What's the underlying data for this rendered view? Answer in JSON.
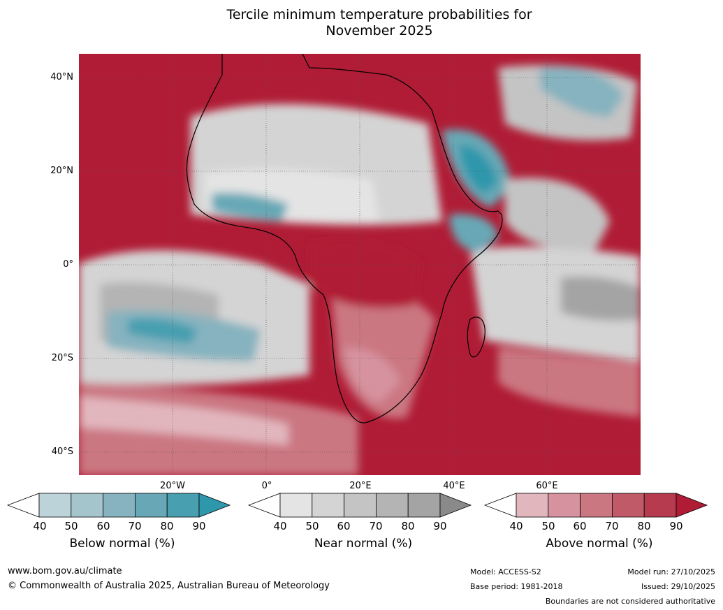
{
  "title": {
    "line1": "Tercile minimum temperature probabilities for",
    "line2": "November 2025"
  },
  "latitude_labels": [
    "40°N",
    "20°N",
    "0°",
    "20°S",
    "40°S"
  ],
  "longitude_labels": [
    "20°W",
    "0°",
    "20°E",
    "40°E",
    "60°E"
  ],
  "colorbars": [
    {
      "label": "Below normal (%)",
      "ticks": [
        "40",
        "50",
        "60",
        "70",
        "80",
        "90"
      ],
      "colors": [
        "#ffffff",
        "#bdd3da",
        "#a5c5cd",
        "#86b3bf",
        "#68a8b6",
        "#479fb0",
        "#2f97ac"
      ]
    },
    {
      "label": "Near normal (%)",
      "ticks": [
        "40",
        "50",
        "60",
        "70",
        "80",
        "90"
      ],
      "colors": [
        "#ffffff",
        "#e4e4e4",
        "#d4d4d4",
        "#c4c4c4",
        "#b4b4b4",
        "#a4a4a4",
        "#8a8a8a"
      ]
    },
    {
      "label": "Above normal (%)",
      "ticks": [
        "40",
        "50",
        "60",
        "70",
        "80",
        "90"
      ],
      "colors": [
        "#ffffff",
        "#e2b6bd",
        "#d6939f",
        "#cb7782",
        "#c05a68",
        "#b73b4f",
        "#b01c35"
      ]
    }
  ],
  "footer": {
    "website": "www.bom.gov.au/climate",
    "copyright": "© Commonwealth of Australia 2025, Australian Bureau of Meteorology",
    "model": "Model: ACCESS-S2",
    "base_period": "Base period: 1981-2018",
    "model_run": "Model run: 27/10/2025",
    "issued": "Issued: 29/10/2025",
    "disclaimer": "Boundaries are not considered authoritative"
  }
}
